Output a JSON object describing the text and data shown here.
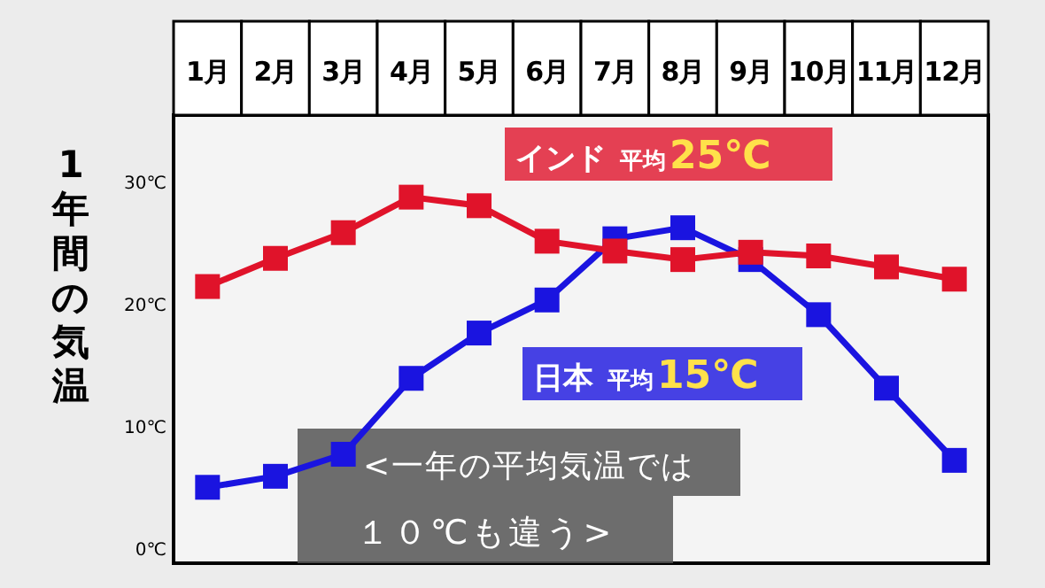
{
  "chart_data": {
    "type": "line",
    "ylabel": "1年間の気温",
    "categories": [
      "1月",
      "2月",
      "3月",
      "4月",
      "5月",
      "6月",
      "7月",
      "8月",
      "9月",
      "10月",
      "11月",
      "12月"
    ],
    "series": [
      {
        "name": "インド",
        "color": "#e0132a",
        "values": [
          21.4,
          23.7,
          25.8,
          28.7,
          28.0,
          25.1,
          24.3,
          23.6,
          24.2,
          23.9,
          23.0,
          22.0
        ]
      },
      {
        "name": "日本",
        "color": "#1a14e0",
        "values": [
          5.0,
          5.9,
          7.7,
          13.9,
          17.6,
          20.3,
          25.3,
          26.2,
          23.6,
          19.1,
          13.1,
          7.2
        ]
      }
    ],
    "ylim": [
      -1.2,
      35.4
    ],
    "yticks": [
      {
        "value": 0,
        "label": "0℃"
      },
      {
        "value": 10,
        "label": "10℃"
      },
      {
        "value": 20,
        "label": "20℃"
      },
      {
        "value": 30,
        "label": "30℃"
      }
    ],
    "annotations": [
      "平均25℃",
      "平均15℃",
      "<一年の平均気温では",
      "１０℃も違う>"
    ],
    "marker": "square",
    "line_style": "solid",
    "grid": false,
    "legend": false
  }
}
